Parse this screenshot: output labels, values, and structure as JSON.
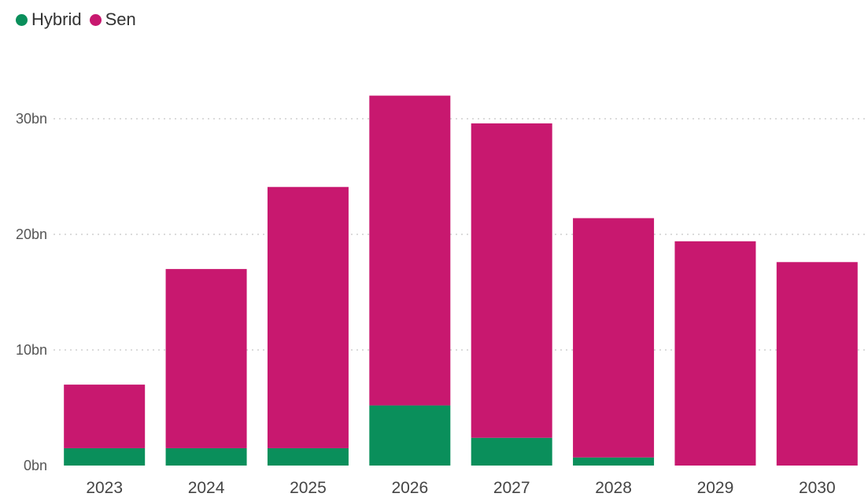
{
  "chart_data": {
    "type": "bar",
    "stacked": true,
    "categories": [
      "2023",
      "2024",
      "2025",
      "2026",
      "2027",
      "2028",
      "2029",
      "2030"
    ],
    "series": [
      {
        "name": "Hybrid",
        "color": "#0a8f5b",
        "values": [
          1.5,
          1.5,
          1.5,
          5.2,
          2.4,
          0.7,
          0,
          0
        ]
      },
      {
        "name": "Sen",
        "color": "#c8186f",
        "values": [
          5.5,
          15.5,
          22.6,
          26.8,
          27.2,
          20.7,
          19.4,
          17.6
        ]
      }
    ],
    "y_ticks": [
      {
        "value": 0,
        "label": "0bn"
      },
      {
        "value": 10,
        "label": "10bn"
      },
      {
        "value": 20,
        "label": "20bn"
      },
      {
        "value": 30,
        "label": "30bn"
      }
    ],
    "ylim": [
      0,
      32
    ],
    "grid": true,
    "legend_position": "top-left",
    "title": "",
    "xlabel": "",
    "ylabel": ""
  }
}
